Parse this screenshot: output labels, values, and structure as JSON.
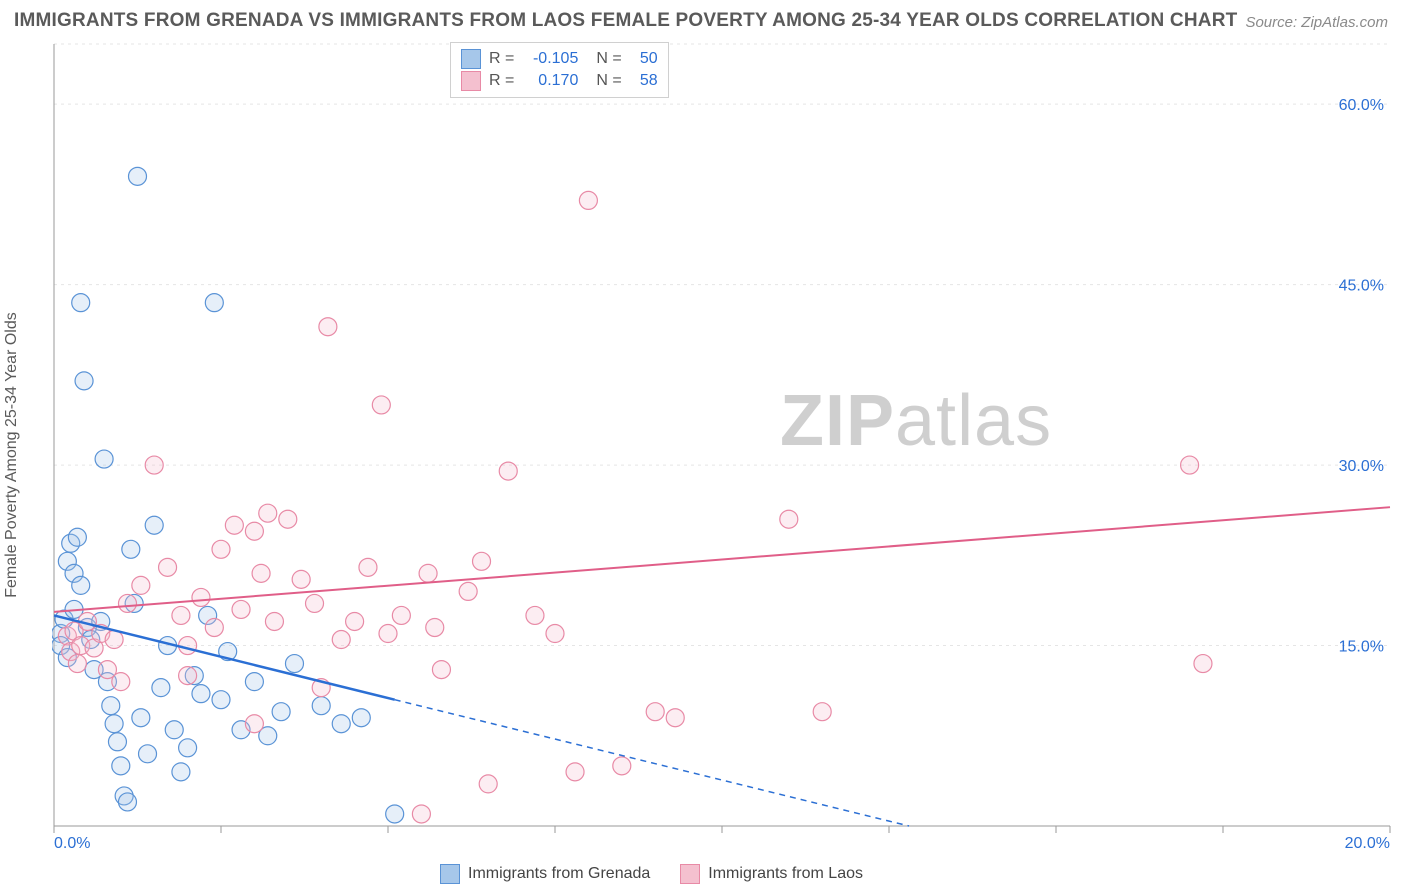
{
  "title": "IMMIGRANTS FROM GRENADA VS IMMIGRANTS FROM LAOS FEMALE POVERTY AMONG 25-34 YEAR OLDS CORRELATION CHART",
  "source": "Source: ZipAtlas.com",
  "watermark_bold": "ZIP",
  "watermark_light": "atlas",
  "y_axis_label": "Female Poverty Among 25-34 Year Olds",
  "chart": {
    "type": "scatter",
    "background_color": "#ffffff",
    "grid_color": "#e5e5e5",
    "axis_color": "#9a9a9a",
    "tick_label_color": "#2b6fd4",
    "tick_fontsize": 16,
    "title_fontsize": 19,
    "xlim": [
      0,
      20
    ],
    "ylim": [
      0,
      65
    ],
    "x_ticks": [
      0,
      2.5,
      5,
      7.5,
      10,
      12.5,
      15,
      17.5,
      20
    ],
    "x_tick_labels": [
      "0.0%",
      "",
      "",
      "",
      "",
      "",
      "",
      "",
      "20.0%"
    ],
    "y_ticks": [
      15,
      30,
      45,
      60
    ],
    "y_tick_labels": [
      "15.0%",
      "30.0%",
      "45.0%",
      "60.0%"
    ],
    "marker_radius": 9,
    "marker_fill_opacity": 0.28,
    "marker_stroke_width": 1.2,
    "series": [
      {
        "name": "Immigrants from Grenada",
        "color_stroke": "#5a93d6",
        "color_fill": "#a6c7ea",
        "r_value": "-0.105",
        "n_value": "50",
        "trend_line": {
          "solid": {
            "x1": 0,
            "y1": 17.5,
            "x2": 5.1,
            "y2": 10.5
          },
          "dashed": {
            "x1": 5.1,
            "y1": 10.5,
            "x2": 12.8,
            "y2": 0
          },
          "color": "#2b6fd4",
          "width": 2.5
        },
        "points": [
          [
            0.1,
            16.0
          ],
          [
            0.1,
            15.0
          ],
          [
            0.15,
            17.2
          ],
          [
            0.2,
            14.0
          ],
          [
            0.2,
            22.0
          ],
          [
            0.25,
            23.5
          ],
          [
            0.3,
            18.0
          ],
          [
            0.3,
            21.0
          ],
          [
            0.4,
            20.0
          ],
          [
            0.35,
            24.0
          ],
          [
            0.4,
            43.5
          ],
          [
            0.45,
            37.0
          ],
          [
            0.5,
            16.5
          ],
          [
            0.55,
            15.5
          ],
          [
            0.6,
            13.0
          ],
          [
            0.7,
            17.0
          ],
          [
            0.75,
            30.5
          ],
          [
            0.8,
            12.0
          ],
          [
            0.85,
            10.0
          ],
          [
            0.9,
            8.5
          ],
          [
            0.95,
            7.0
          ],
          [
            1.0,
            5.0
          ],
          [
            1.05,
            2.5
          ],
          [
            1.1,
            2.0
          ],
          [
            1.15,
            23.0
          ],
          [
            1.2,
            18.5
          ],
          [
            1.25,
            54.0
          ],
          [
            1.3,
            9.0
          ],
          [
            1.4,
            6.0
          ],
          [
            1.5,
            25.0
          ],
          [
            1.6,
            11.5
          ],
          [
            1.7,
            15.0
          ],
          [
            1.8,
            8.0
          ],
          [
            1.9,
            4.5
          ],
          [
            2.0,
            6.5
          ],
          [
            2.1,
            12.5
          ],
          [
            2.2,
            11.0
          ],
          [
            2.3,
            17.5
          ],
          [
            2.4,
            43.5
          ],
          [
            2.5,
            10.5
          ],
          [
            2.6,
            14.5
          ],
          [
            2.8,
            8.0
          ],
          [
            3.0,
            12.0
          ],
          [
            3.2,
            7.5
          ],
          [
            3.4,
            9.5
          ],
          [
            3.6,
            13.5
          ],
          [
            4.0,
            10.0
          ],
          [
            4.3,
            8.5
          ],
          [
            4.6,
            9.0
          ],
          [
            5.1,
            1.0
          ]
        ]
      },
      {
        "name": "Immigrants from Laos",
        "color_stroke": "#e88aa6",
        "color_fill": "#f4c0cf",
        "r_value": "0.170",
        "n_value": "58",
        "trend_line": {
          "solid": {
            "x1": 0,
            "y1": 17.8,
            "x2": 20,
            "y2": 26.5
          },
          "color": "#e05e88",
          "width": 2.0
        },
        "points": [
          [
            0.2,
            15.8
          ],
          [
            0.25,
            14.5
          ],
          [
            0.3,
            16.2
          ],
          [
            0.35,
            13.5
          ],
          [
            0.4,
            15.0
          ],
          [
            0.5,
            17.0
          ],
          [
            0.6,
            14.8
          ],
          [
            0.7,
            16.0
          ],
          [
            0.8,
            13.0
          ],
          [
            0.9,
            15.5
          ],
          [
            1.0,
            12.0
          ],
          [
            1.1,
            18.5
          ],
          [
            1.3,
            20.0
          ],
          [
            1.5,
            30.0
          ],
          [
            1.7,
            21.5
          ],
          [
            1.9,
            17.5
          ],
          [
            2.0,
            15.0
          ],
          [
            2.2,
            19.0
          ],
          [
            2.4,
            16.5
          ],
          [
            2.5,
            23.0
          ],
          [
            2.7,
            25.0
          ],
          [
            2.8,
            18.0
          ],
          [
            3.0,
            24.5
          ],
          [
            3.1,
            21.0
          ],
          [
            3.2,
            26.0
          ],
          [
            3.3,
            17.0
          ],
          [
            3.5,
            25.5
          ],
          [
            3.7,
            20.5
          ],
          [
            3.9,
            18.5
          ],
          [
            4.0,
            11.5
          ],
          [
            4.1,
            41.5
          ],
          [
            4.3,
            15.5
          ],
          [
            4.5,
            17.0
          ],
          [
            4.7,
            21.5
          ],
          [
            4.9,
            35.0
          ],
          [
            5.0,
            16.0
          ],
          [
            5.2,
            17.5
          ],
          [
            5.5,
            1.0
          ],
          [
            5.6,
            21.0
          ],
          [
            5.7,
            16.5
          ],
          [
            5.8,
            13.0
          ],
          [
            6.2,
            19.5
          ],
          [
            6.4,
            22.0
          ],
          [
            6.5,
            3.5
          ],
          [
            6.8,
            29.5
          ],
          [
            7.2,
            17.5
          ],
          [
            7.5,
            16.0
          ],
          [
            7.8,
            4.5
          ],
          [
            8.0,
            52.0
          ],
          [
            8.5,
            5.0
          ],
          [
            9.0,
            9.5
          ],
          [
            9.3,
            9.0
          ],
          [
            11.0,
            25.5
          ],
          [
            11.5,
            9.5
          ],
          [
            17.0,
            30.0
          ],
          [
            17.2,
            13.5
          ],
          [
            3.0,
            8.5
          ],
          [
            2.0,
            12.5
          ]
        ]
      }
    ]
  },
  "legend_bottom": [
    {
      "label": "Immigrants from Grenada",
      "fill": "#a6c7ea",
      "stroke": "#5a93d6"
    },
    {
      "label": "Immigrants from Laos",
      "fill": "#f4c0cf",
      "stroke": "#e88aa6"
    }
  ]
}
